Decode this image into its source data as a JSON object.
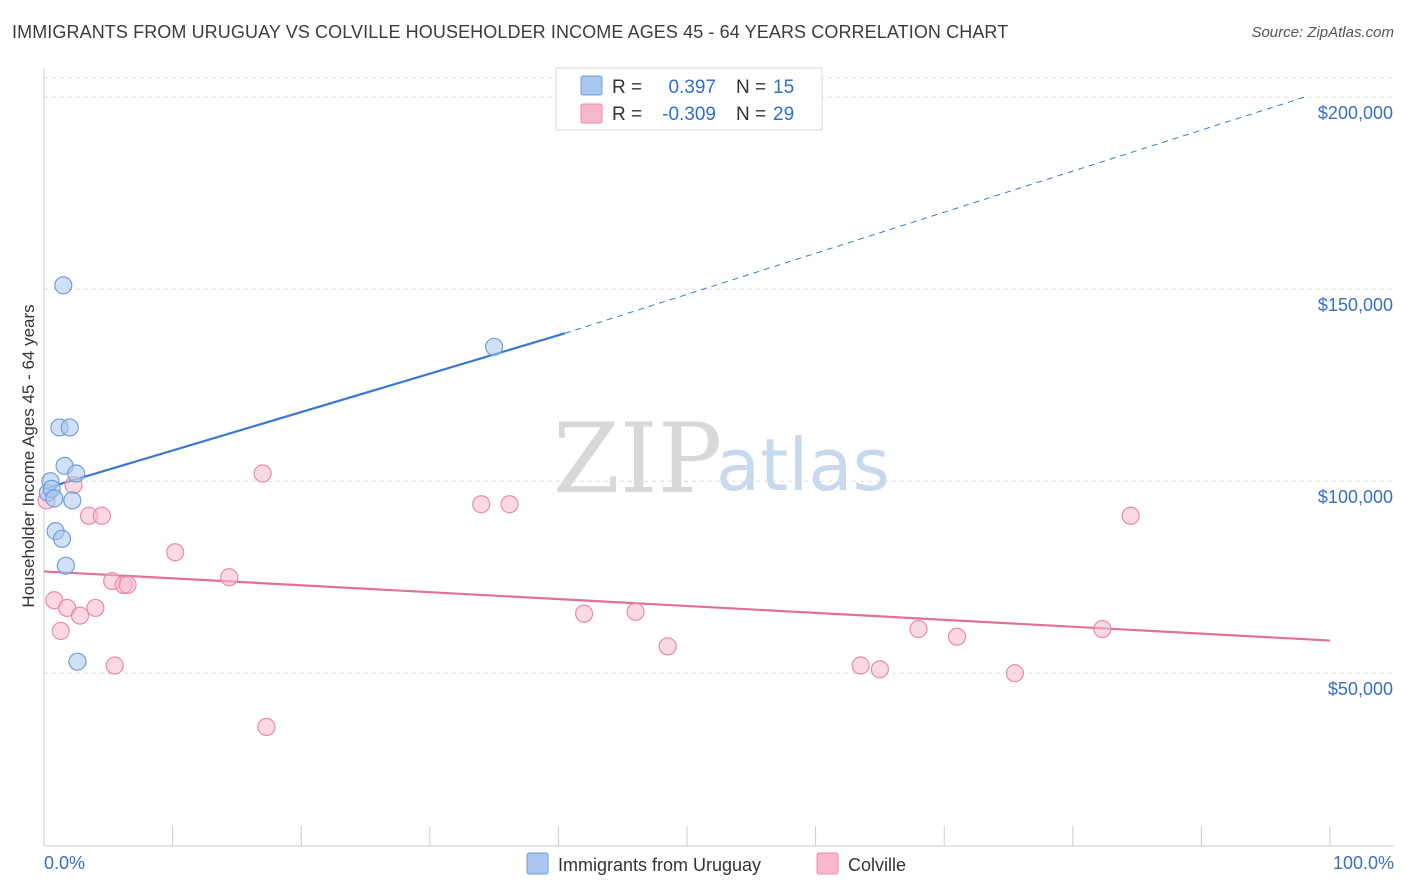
{
  "header": {
    "title": "IMMIGRANTS FROM URUGUAY VS COLVILLE HOUSEHOLDER INCOME AGES 45 - 64 YEARS CORRELATION CHART",
    "source": "Source: ZipAtlas.com"
  },
  "watermark": {
    "part1": "ZIP",
    "part2": "atlas"
  },
  "legend": {
    "rows": [
      {
        "r_label": "R =",
        "r_value": "0.397",
        "n_label": "N =",
        "n_value": "15",
        "color": "#a9c6f0"
      },
      {
        "r_label": "R =",
        "r_value": "-0.309",
        "n_label": "N =",
        "n_value": "29",
        "color": "#f6b9cc"
      }
    ]
  },
  "chart_data": {
    "type": "scatter",
    "title": "IMMIGRANTS FROM URUGUAY VS COLVILLE HOUSEHOLDER INCOME AGES 45 - 64 YEARS CORRELATION CHART",
    "xlabel": "",
    "ylabel": "Householder Income Ages 45 - 64 years",
    "xlim": [
      0,
      100
    ],
    "ylim": [
      5000,
      205000
    ],
    "x_tick_labels": [
      "0.0%",
      "100.0%"
    ],
    "y_ticks": [
      50000,
      100000,
      150000,
      200000
    ],
    "y_tick_labels": [
      "$50,000",
      "$100,000",
      "$150,000",
      "$200,000"
    ],
    "series": [
      {
        "name": "Immigrants from Uruguay",
        "color": "#a9c6f0",
        "stroke": "#6f9fd8",
        "points": [
          [
            0.3,
            97000
          ],
          [
            0.5,
            100000
          ],
          [
            0.6,
            98000
          ],
          [
            0.8,
            95500
          ],
          [
            1.2,
            114000
          ],
          [
            1.5,
            151000
          ],
          [
            1.6,
            104000
          ],
          [
            1.7,
            78000
          ],
          [
            2.0,
            114000
          ],
          [
            2.2,
            95000
          ],
          [
            0.9,
            87000
          ],
          [
            1.4,
            85000
          ],
          [
            2.5,
            102000
          ],
          [
            2.6,
            53000
          ],
          [
            35.0,
            135000
          ]
        ],
        "trend": {
          "x0": 0,
          "y0": 98000,
          "x1": 40.5,
          "y1": 138500,
          "dash_to_x": 98,
          "dash_to_y": 200000
        }
      },
      {
        "name": "Colville",
        "color": "#f6b9cc",
        "stroke": "#e88aa8",
        "points": [
          [
            0.2,
            95000
          ],
          [
            0.8,
            69000
          ],
          [
            1.3,
            61000
          ],
          [
            1.8,
            67000
          ],
          [
            2.3,
            99000
          ],
          [
            2.8,
            65000
          ],
          [
            3.5,
            91000
          ],
          [
            4.0,
            67000
          ],
          [
            4.5,
            91000
          ],
          [
            5.3,
            74000
          ],
          [
            5.5,
            52000
          ],
          [
            6.2,
            73000
          ],
          [
            6.5,
            73000
          ],
          [
            10.2,
            81500
          ],
          [
            14.4,
            75000
          ],
          [
            17.0,
            102000
          ],
          [
            17.3,
            36000
          ],
          [
            34.0,
            94000
          ],
          [
            36.2,
            94000
          ],
          [
            42.0,
            65500
          ],
          [
            46.0,
            66000
          ],
          [
            48.5,
            57000
          ],
          [
            63.5,
            52000
          ],
          [
            65.0,
            51000
          ],
          [
            68.0,
            61500
          ],
          [
            71.0,
            59500
          ],
          [
            75.5,
            50000
          ],
          [
            82.3,
            61500
          ],
          [
            84.5,
            91000
          ]
        ],
        "trend": {
          "x0": 0,
          "y0": 76500,
          "x1": 100,
          "y1": 58500
        }
      }
    ]
  },
  "bottom_legend": {
    "items": [
      {
        "label": "Immigrants from Uruguay",
        "color": "#a9c6f0"
      },
      {
        "label": "Colville",
        "color": "#f6b9cc"
      }
    ]
  }
}
